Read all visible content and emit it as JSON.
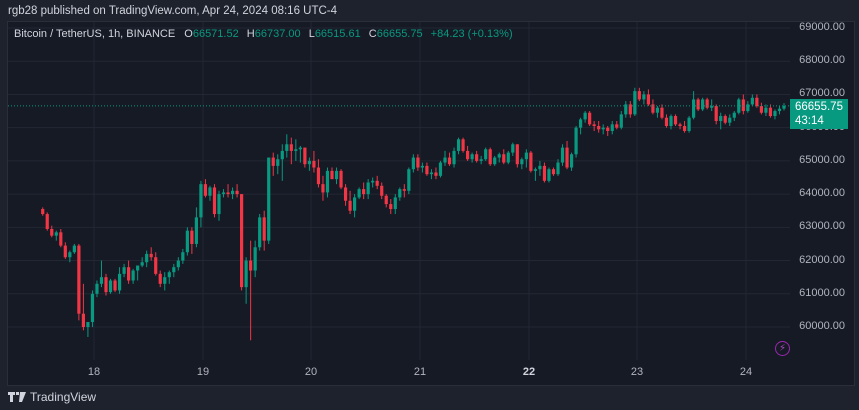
{
  "header": {
    "published_text": "rgb28 published on TradingView.com, Apr 24, 2024 08:16 UTC-4"
  },
  "legend": {
    "symbol": "Bitcoin / TetherUS, 1h, BINANCE",
    "open_key": "O",
    "open": "66571.52",
    "high_key": "H",
    "high": "66737.00",
    "low_key": "L",
    "low": "66515.61",
    "close_key": "C",
    "close": "66655.75",
    "change": "+84.23 (+0.13%)"
  },
  "last_price": {
    "value": "66655.75",
    "countdown": "43:14"
  },
  "footer": {
    "brand": "TradingView"
  },
  "icons": {
    "tv_logo": "tradingview-logo-icon",
    "bolt": "lightning-bolt-icon"
  },
  "colors": {
    "background": "#1e222d",
    "chart_bg": "#161a25",
    "grid": "#232733",
    "up": "#089981",
    "down": "#f23645",
    "last_price_line": "#089981",
    "axis_text": "#b2b5be",
    "bolt": "#9c27b0"
  },
  "chart_data": {
    "type": "candlestick",
    "title": "Bitcoin / TetherUS, 1h, BINANCE",
    "xlabel": "",
    "ylabel": "",
    "y_ticks": [
      "69000.00",
      "68000.00",
      "67000.00",
      "66000.00",
      "65000.00",
      "64000.00",
      "63000.00",
      "62000.00",
      "61000.00",
      "60000.00"
    ],
    "x_ticks": [
      "18",
      "19",
      "20",
      "21",
      "22",
      "23",
      "24"
    ],
    "x_tick_bold": "22",
    "ylim": [
      59000,
      69400
    ],
    "grid": true,
    "last_price": 66655.75,
    "interval": "1h",
    "candles_ohlc": [
      [
        63550,
        63600,
        63350,
        63400
      ],
      [
        63400,
        63450,
        62900,
        62950
      ],
      [
        62950,
        63050,
        62700,
        62750
      ],
      [
        62750,
        62900,
        62600,
        62850
      ],
      [
        62850,
        62950,
        62400,
        62450
      ],
      [
        62450,
        62550,
        62050,
        62100
      ],
      [
        62100,
        62300,
        61950,
        62250
      ],
      [
        62250,
        62500,
        62200,
        62450
      ],
      [
        62450,
        62500,
        60200,
        60400
      ],
      [
        60400,
        61300,
        59900,
        60000
      ],
      [
        60000,
        60100,
        59700,
        60150
      ],
      [
        60150,
        61100,
        60000,
        61000
      ],
      [
        61000,
        61400,
        60900,
        61300
      ],
      [
        61300,
        62000,
        61200,
        61500
      ],
      [
        61500,
        61600,
        60950,
        61050
      ],
      [
        61050,
        61450,
        61000,
        61400
      ],
      [
        61400,
        61450,
        61050,
        61100
      ],
      [
        61100,
        61800,
        61000,
        61600
      ],
      [
        61600,
        61900,
        61500,
        61800
      ],
      [
        61800,
        62000,
        61300,
        61400
      ],
      [
        61400,
        61750,
        61300,
        61700
      ],
      [
        61700,
        61850,
        61400,
        61850
      ],
      [
        61850,
        62100,
        61800,
        61950
      ],
      [
        61950,
        62300,
        61800,
        62200
      ],
      [
        62200,
        62400,
        62000,
        62100
      ],
      [
        62100,
        62250,
        61550,
        61600
      ],
      [
        61600,
        61700,
        61200,
        61300
      ],
      [
        61300,
        61650,
        61100,
        61500
      ],
      [
        61500,
        61700,
        61300,
        61650
      ],
      [
        61650,
        61900,
        61500,
        61800
      ],
      [
        61800,
        62100,
        61700,
        62000
      ],
      [
        62000,
        62350,
        61900,
        62250
      ],
      [
        62250,
        63000,
        62150,
        62900
      ],
      [
        62900,
        63000,
        62200,
        62500
      ],
      [
        62500,
        63600,
        62400,
        63300
      ],
      [
        63300,
        64400,
        63000,
        64300
      ],
      [
        64300,
        64450,
        63900,
        63950
      ],
      [
        63950,
        64250,
        63800,
        64200
      ],
      [
        64200,
        64300,
        63300,
        63400
      ],
      [
        63400,
        64100,
        63200,
        64000
      ],
      [
        64000,
        64150,
        63900,
        64050
      ],
      [
        64050,
        64300,
        63900,
        64000
      ],
      [
        64000,
        64200,
        63850,
        64100
      ],
      [
        64100,
        64300,
        63900,
        64000
      ],
      [
        64000,
        64000,
        61100,
        61200
      ],
      [
        61200,
        62100,
        60700,
        62000
      ],
      [
        62000,
        62600,
        59600,
        61700
      ],
      [
        61700,
        62600,
        61500,
        62400
      ],
      [
        62400,
        63400,
        62300,
        63300
      ],
      [
        63300,
        63500,
        62300,
        62600
      ],
      [
        62600,
        65100,
        62500,
        65100
      ],
      [
        65100,
        65250,
        64550,
        64850
      ],
      [
        64850,
        65200,
        64600,
        65050
      ],
      [
        65050,
        65500,
        64400,
        65300
      ],
      [
        65300,
        65800,
        65100,
        65500
      ],
      [
        65500,
        65700,
        64900,
        65300
      ],
      [
        65300,
        65650,
        65000,
        65350
      ],
      [
        65350,
        65450,
        64950,
        65400
      ],
      [
        65400,
        65400,
        64800,
        64900
      ],
      [
        64900,
        65100,
        64700,
        65000
      ],
      [
        65000,
        65300,
        64650,
        64800
      ],
      [
        64800,
        65050,
        64200,
        64300
      ],
      [
        64300,
        64550,
        63800,
        64050
      ],
      [
        64050,
        64800,
        63900,
        64700
      ],
      [
        64700,
        64800,
        64450,
        64450
      ],
      [
        64450,
        64800,
        64300,
        64700
      ],
      [
        64700,
        64750,
        64150,
        64200
      ],
      [
        64200,
        64300,
        63650,
        63800
      ],
      [
        63800,
        64100,
        63400,
        63500
      ],
      [
        63500,
        64000,
        63300,
        63900
      ],
      [
        63900,
        64200,
        63850,
        64150
      ],
      [
        64150,
        64350,
        63850,
        64000
      ],
      [
        64000,
        64450,
        63850,
        64350
      ],
      [
        64350,
        64500,
        64200,
        64400
      ],
      [
        64400,
        64550,
        64150,
        64250
      ],
      [
        64250,
        64350,
        63850,
        63950
      ],
      [
        63950,
        64000,
        63600,
        63700
      ],
      [
        63700,
        63850,
        63400,
        63550
      ],
      [
        63550,
        64000,
        63400,
        63900
      ],
      [
        63900,
        64200,
        63800,
        64150
      ],
      [
        64150,
        64300,
        63900,
        64100
      ],
      [
        64100,
        64800,
        64000,
        64750
      ],
      [
        64750,
        65200,
        64650,
        65100
      ],
      [
        65100,
        65200,
        64700,
        64800
      ],
      [
        64800,
        64950,
        64650,
        64850
      ],
      [
        64850,
        64950,
        64550,
        64600
      ],
      [
        64600,
        64750,
        64450,
        64650
      ],
      [
        64650,
        64800,
        64450,
        64550
      ],
      [
        64550,
        65000,
        64500,
        64950
      ],
      [
        64950,
        65300,
        64850,
        65100
      ],
      [
        65100,
        65250,
        64850,
        64900
      ],
      [
        64900,
        65400,
        64800,
        65300
      ],
      [
        65300,
        65700,
        65200,
        65650
      ],
      [
        65650,
        65700,
        65250,
        65300
      ],
      [
        65300,
        65450,
        65000,
        65050
      ],
      [
        65050,
        65250,
        64950,
        65200
      ],
      [
        65200,
        65300,
        64950,
        65000
      ],
      [
        65000,
        65150,
        64900,
        65050
      ],
      [
        65050,
        65400,
        65000,
        65350
      ],
      [
        65350,
        65400,
        64850,
        64900
      ],
      [
        64900,
        65150,
        64850,
        65100
      ],
      [
        65100,
        65250,
        64950,
        65200
      ],
      [
        65200,
        65350,
        64900,
        64950
      ],
      [
        64950,
        65300,
        64900,
        65250
      ],
      [
        65250,
        65550,
        65150,
        65500
      ],
      [
        65500,
        65500,
        64800,
        64900
      ],
      [
        64900,
        65100,
        64750,
        65050
      ],
      [
        65050,
        65350,
        64800,
        65250
      ],
      [
        65250,
        65300,
        64650,
        64700
      ],
      [
        64700,
        64800,
        64400,
        64750
      ],
      [
        64750,
        65000,
        64550,
        64850
      ],
      [
        64850,
        64950,
        64350,
        64400
      ],
      [
        64400,
        64800,
        64350,
        64750
      ],
      [
        64750,
        64800,
        64550,
        64600
      ],
      [
        64600,
        65050,
        64550,
        64950
      ],
      [
        64950,
        65500,
        64850,
        65400
      ],
      [
        65400,
        65600,
        64750,
        64800
      ],
      [
        64800,
        65250,
        64700,
        65200
      ],
      [
        65200,
        66050,
        65100,
        66000
      ],
      [
        66000,
        66300,
        65800,
        66250
      ],
      [
        66250,
        66500,
        66150,
        66450
      ],
      [
        66450,
        66500,
        66050,
        66100
      ],
      [
        66100,
        66200,
        65900,
        66050
      ],
      [
        66050,
        66200,
        65850,
        65950
      ],
      [
        65950,
        66100,
        65800,
        66000
      ],
      [
        66000,
        66050,
        65750,
        65900
      ],
      [
        65900,
        66200,
        65800,
        66100
      ],
      [
        66100,
        66200,
        65950,
        66000
      ],
      [
        66000,
        66500,
        65950,
        66400
      ],
      [
        66400,
        66800,
        66300,
        66700
      ],
      [
        66700,
        66800,
        66300,
        66400
      ],
      [
        66400,
        67200,
        66350,
        67100
      ],
      [
        67100,
        67200,
        66800,
        66850
      ],
      [
        66850,
        67100,
        66700,
        67000
      ],
      [
        67000,
        67150,
        66650,
        66700
      ],
      [
        66700,
        66850,
        66400,
        66450
      ],
      [
        66450,
        66650,
        66300,
        66600
      ],
      [
        66600,
        66700,
        66250,
        66300
      ],
      [
        66300,
        66400,
        66000,
        66050
      ],
      [
        66050,
        66400,
        65950,
        66350
      ],
      [
        66350,
        66400,
        66050,
        66100
      ],
      [
        66100,
        66150,
        65950,
        66050
      ],
      [
        66050,
        66200,
        65850,
        65900
      ],
      [
        65900,
        66350,
        65850,
        66300
      ],
      [
        66300,
        67100,
        66250,
        66850
      ],
      [
        66850,
        66900,
        66500,
        66550
      ],
      [
        66550,
        66900,
        66500,
        66850
      ],
      [
        66850,
        66900,
        66550,
        66600
      ],
      [
        66600,
        66850,
        66500,
        66650
      ],
      [
        66650,
        66700,
        66100,
        66200
      ],
      [
        66200,
        66450,
        65950,
        66350
      ],
      [
        66350,
        66400,
        66100,
        66150
      ],
      [
        66150,
        66400,
        66050,
        66300
      ],
      [
        66300,
        66500,
        66200,
        66450
      ],
      [
        66450,
        66900,
        66400,
        66850
      ],
      [
        66850,
        67000,
        66400,
        66500
      ],
      [
        66500,
        66800,
        66450,
        66700
      ],
      [
        66700,
        67000,
        66650,
        66900
      ],
      [
        66900,
        67000,
        66600,
        66650
      ],
      [
        66650,
        66750,
        66400,
        66450
      ],
      [
        66450,
        66700,
        66350,
        66600
      ],
      [
        66600,
        66700,
        66300,
        66350
      ],
      [
        66350,
        66550,
        66250,
        66500
      ],
      [
        66500,
        66650,
        66400,
        66571.52
      ],
      [
        66571.52,
        66737,
        66515.61,
        66655.75
      ]
    ]
  }
}
